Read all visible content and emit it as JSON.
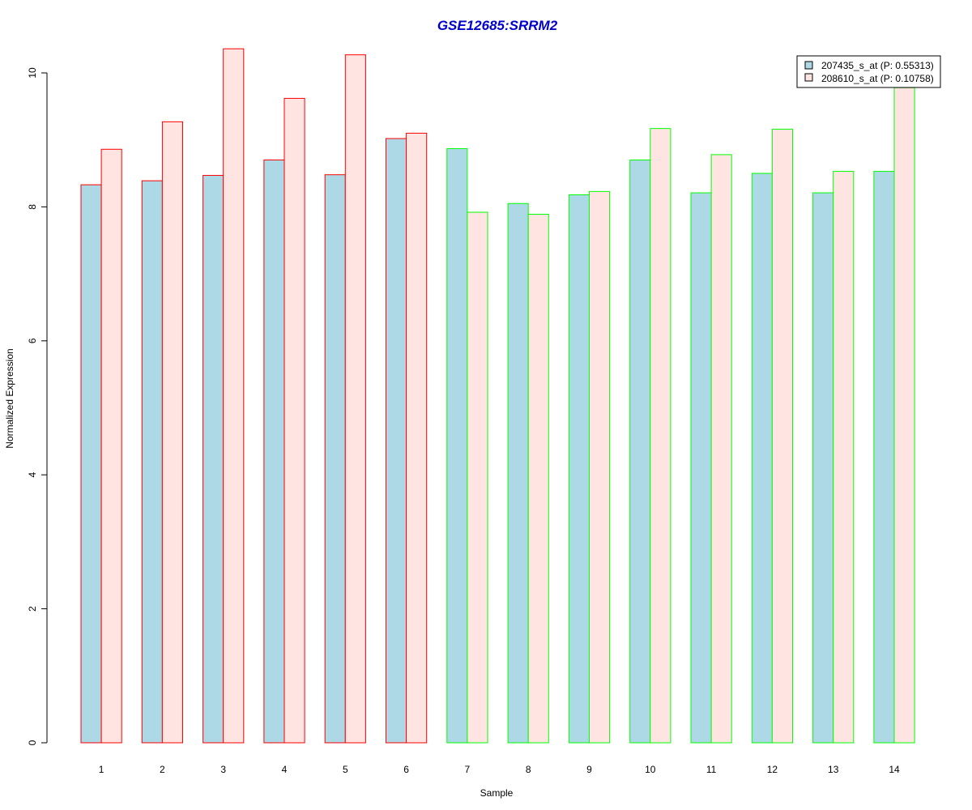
{
  "chart_data": {
    "type": "bar",
    "title": "GSE12685:SRRM2",
    "xlabel": "Sample",
    "ylabel": "Normalized Expression",
    "categories": [
      "1",
      "2",
      "3",
      "4",
      "5",
      "6",
      "7",
      "8",
      "9",
      "10",
      "11",
      "12",
      "13",
      "14"
    ],
    "series": [
      {
        "name": "207435_s_at (P: 0.55313)",
        "fill": "#add8e6",
        "values": [
          8.33,
          8.39,
          8.47,
          8.7,
          8.48,
          9.02,
          8.87,
          8.05,
          8.18,
          8.7,
          8.21,
          8.5,
          8.21,
          8.53
        ]
      },
      {
        "name": "208610_s_at (P: 0.10758)",
        "fill": "#ffe4e1",
        "values": [
          8.86,
          9.27,
          10.36,
          9.62,
          10.27,
          9.1,
          7.92,
          7.89,
          8.23,
          9.17,
          8.78,
          9.16,
          8.53,
          9.78
        ]
      }
    ],
    "group_outline_colors": [
      "#ff0000",
      "#ff0000",
      "#ff0000",
      "#ff0000",
      "#ff0000",
      "#ff0000",
      "#00ff00",
      "#00ff00",
      "#00ff00",
      "#00ff00",
      "#00ff00",
      "#00ff00",
      "#00ff00",
      "#00ff00"
    ],
    "y_ticks": [
      "0",
      "2",
      "4",
      "6",
      "8",
      "10"
    ],
    "ylim": [
      0,
      10.4
    ],
    "grid": false,
    "legend_position": "top-right",
    "title_color": "#0000cc",
    "axis_color": "#000000"
  }
}
